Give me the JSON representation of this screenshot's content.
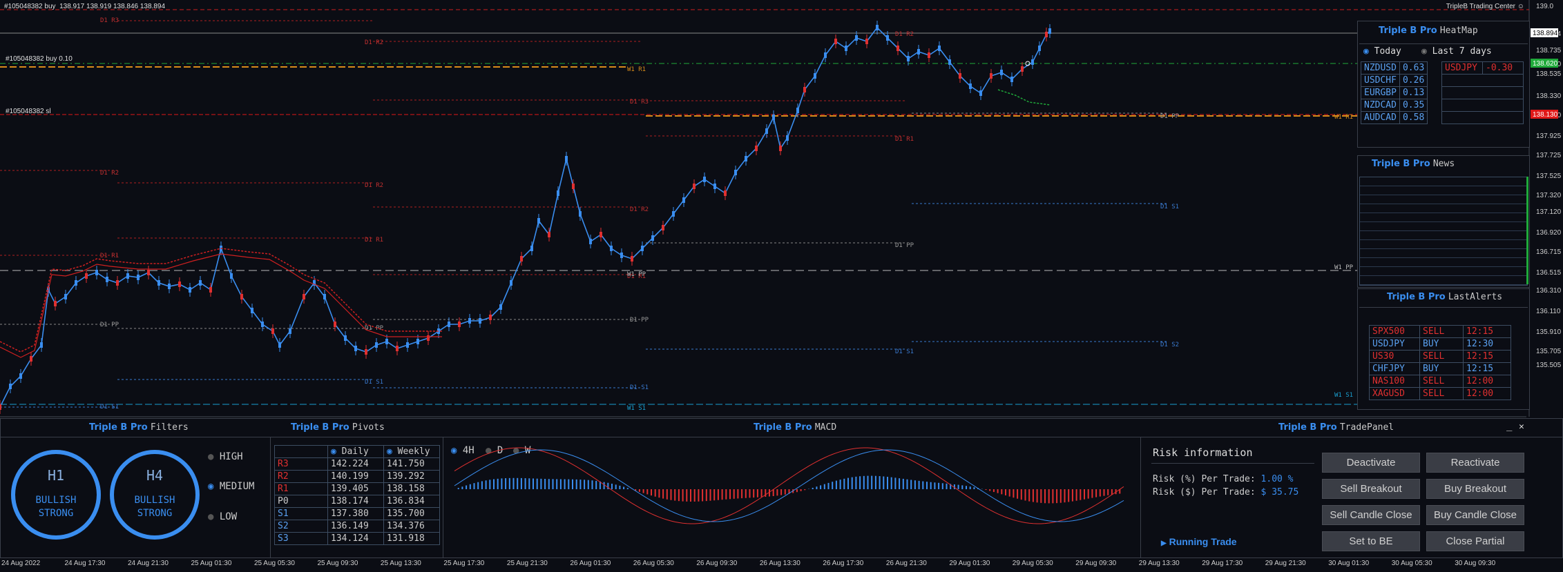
{
  "top_info": {
    "symbol_line": "#105048382 buy",
    "ohlc": "138.917 138.919 138.846 138.894",
    "trading_center": "TripleB Trading Center"
  },
  "order_labels": {
    "buy": "#105048382 buy 0.10",
    "sl": "#105048382 sl"
  },
  "price_axis": {
    "ticks": [
      "139.0",
      "138.894",
      "138.735",
      "138.620",
      "138.535",
      "138.330",
      "138.130",
      "137.925",
      "137.725",
      "137.525",
      "137.320",
      "137.120",
      "136.920",
      "136.715",
      "136.515",
      "136.310",
      "136.110",
      "135.910",
      "135.705",
      "135.505"
    ],
    "current_price": "138.894",
    "buy_price": "138.620",
    "sl_price": "138.130",
    "colors": {
      "current": "#ffffff",
      "buy": "#1faa3a",
      "sl": "#e01818"
    }
  },
  "time_axis": [
    "24 Aug 2022",
    "24 Aug 17:30",
    "24 Aug 21:30",
    "25 Aug 01:30",
    "25 Aug 05:30",
    "25 Aug 09:30",
    "25 Aug 13:30",
    "25 Aug 17:30",
    "25 Aug 21:30",
    "26 Aug 01:30",
    "26 Aug 05:30",
    "26 Aug 09:30",
    "26 Aug 13:30",
    "26 Aug 17:30",
    "26 Aug 21:30",
    "29 Aug 01:30",
    "29 Aug 05:30",
    "29 Aug 09:30",
    "29 Aug 13:30",
    "29 Aug 17:30",
    "29 Aug 21:30",
    "30 Aug 01:30",
    "30 Aug 05:30",
    "30 Aug 09:30"
  ],
  "pivot_labels": [
    "D1 R3",
    "D1 R2",
    "D1 R1",
    "D1 PP",
    "D1 S1",
    "W1 R1",
    "W1 PP",
    "W1 S1"
  ],
  "heatmap": {
    "brand": "Triple B Pro",
    "title": "HeatMap",
    "option_today": "Today",
    "option_week": "Last 7 days",
    "rows_left": [
      {
        "pair": "NZDUSD",
        "value": "0.63"
      },
      {
        "pair": "USDCHF",
        "value": "0.26"
      },
      {
        "pair": "EURGBP",
        "value": "0.13"
      },
      {
        "pair": "NZDCAD",
        "value": "0.35"
      },
      {
        "pair": "AUDCAD",
        "value": "0.58"
      }
    ],
    "rows_right": [
      {
        "pair": "USDJPY",
        "value": "-0.30"
      }
    ]
  },
  "news": {
    "brand": "Triple B Pro",
    "title": "News"
  },
  "alerts": {
    "brand": "Triple B Pro",
    "title": "LastAlerts",
    "rows": [
      {
        "symbol": "SPX500",
        "side": "SELL",
        "time": "12:15"
      },
      {
        "symbol": "USDJPY",
        "side": "BUY",
        "time": "12:30"
      },
      {
        "symbol": "US30",
        "side": "SELL",
        "time": "12:15"
      },
      {
        "symbol": "CHFJPY",
        "side": "BUY",
        "time": "12:15"
      },
      {
        "symbol": "NAS100",
        "side": "SELL",
        "time": "12:00"
      },
      {
        "symbol": "XAGUSD",
        "side": "SELL",
        "time": "12:00"
      }
    ]
  },
  "filters": {
    "brand": "Triple B Pro",
    "title": "Filters",
    "h1": {
      "tf": "H1",
      "line1": "BULLISH",
      "line2": "STRONG"
    },
    "h4": {
      "tf": "H4",
      "line1": "BULLISH",
      "line2": "STRONG"
    },
    "levels": [
      "HIGH",
      "MEDIUM",
      "LOW"
    ],
    "selected": "MEDIUM"
  },
  "pivots": {
    "brand": "Triple B Pro",
    "title": "Pivots",
    "col_daily": "Daily",
    "col_weekly": "Weekly",
    "rows": [
      {
        "name": "R3",
        "daily": "142.224",
        "weekly": "141.750"
      },
      {
        "name": "R2",
        "daily": "140.199",
        "weekly": "139.292"
      },
      {
        "name": "R1",
        "daily": "139.405",
        "weekly": "138.158"
      },
      {
        "name": "P0",
        "daily": "138.174",
        "weekly": "136.834"
      },
      {
        "name": "S1",
        "daily": "137.380",
        "weekly": "135.700"
      },
      {
        "name": "S2",
        "daily": "136.149",
        "weekly": "134.376"
      },
      {
        "name": "S3",
        "daily": "134.124",
        "weekly": "131.918"
      }
    ]
  },
  "macd": {
    "brand": "Triple B Pro",
    "title": "MACD",
    "tfs": [
      "4H",
      "D",
      "W"
    ],
    "selected": "4H"
  },
  "tradepanel": {
    "brand": "Triple B Pro",
    "title": "TradePanel",
    "minimize": "_",
    "close": "✕",
    "risk_title": "Risk information",
    "risk_pct_label": "Risk (%) Per Trade:",
    "risk_pct": "1.00 %",
    "risk_usd_label": "Risk ($) Per Trade:",
    "risk_usd": "$ 35.75",
    "running": "Running Trade",
    "buttons": [
      "Deactivate",
      "Reactivate",
      "Sell Breakout",
      "Buy Breakout",
      "Sell Candle Close",
      "Buy Candle Close",
      "Set to BE",
      "Close Partial"
    ]
  }
}
